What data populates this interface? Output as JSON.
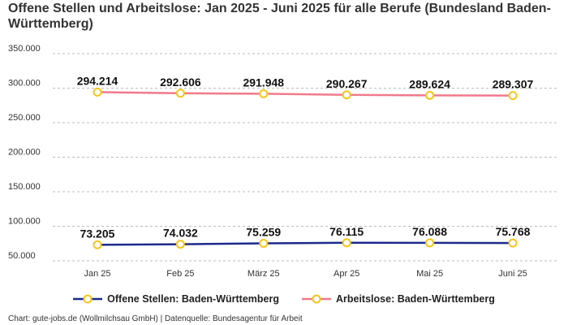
{
  "title": "Offene Stellen und Arbeitslose: Jan 2025 - Juni 2025 für alle Berufe (Bundesland Baden-Württemberg)",
  "credit": "Chart: gute-jobs.de (Wollmilchsau GmbH) | Datenquelle: Bundesagentur für Arbeit",
  "chart_data": {
    "type": "line",
    "title": "Offene Stellen und Arbeitslose: Jan 2025 - Juni 2025 für alle Berufe (Bundesland Baden-Württemberg)",
    "categories": [
      "Jan 25",
      "Feb 25",
      "März 25",
      "Apr 25",
      "Mai 25",
      "Juni 25"
    ],
    "yticks": [
      "50.000",
      "100.000",
      "150.000",
      "200.000",
      "250.000",
      "300.000",
      "350.000"
    ],
    "ylim": [
      50000,
      350000
    ],
    "grid": true,
    "legend_position": "bottom",
    "series": [
      {
        "name": "Offene Stellen: Baden-Württemberg",
        "color": "#1c2a8c",
        "values": [
          73205,
          74032,
          75259,
          76115,
          76088,
          75768
        ],
        "labels": [
          "73.205",
          "74.032",
          "75.259",
          "76.115",
          "76.088",
          "75.768"
        ]
      },
      {
        "name": "Arbeitslose: Baden-Württemberg",
        "color": "#f07a8c",
        "values": [
          294214,
          292606,
          291948,
          290267,
          289624,
          289307
        ],
        "labels": [
          "294.214",
          "292.606",
          "291.948",
          "290.267",
          "289.624",
          "289.307"
        ]
      }
    ],
    "marker_color": "#f5c518"
  }
}
